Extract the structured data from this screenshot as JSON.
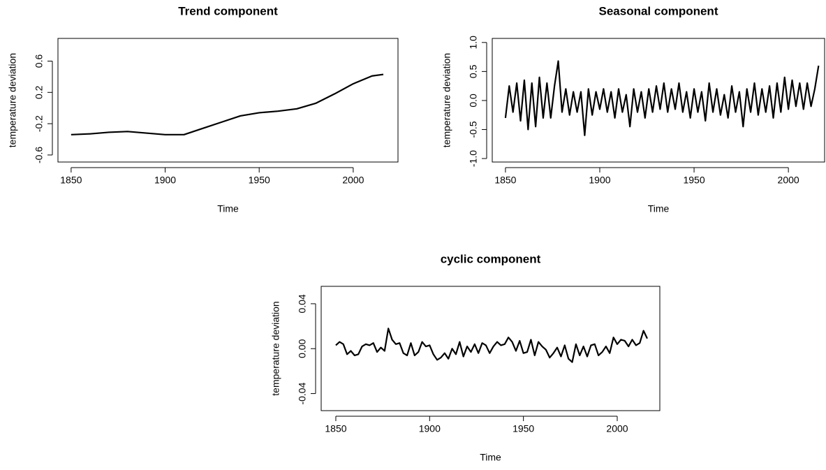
{
  "chart_data": [
    {
      "type": "line",
      "title": "Trend component",
      "xlabel": "Time",
      "ylabel": "temperature deviation",
      "color": "#000000",
      "x": [
        1850,
        1860,
        1870,
        1880,
        1890,
        1900,
        1910,
        1920,
        1930,
        1940,
        1950,
        1960,
        1970,
        1980,
        1990,
        2000,
        2010,
        2016
      ],
      "values": [
        -0.34,
        -0.33,
        -0.31,
        -0.3,
        -0.32,
        -0.34,
        -0.34,
        -0.26,
        -0.18,
        -0.1,
        -0.06,
        -0.04,
        -0.01,
        0.06,
        0.18,
        0.31,
        0.41,
        0.43
      ],
      "xlim": [
        1843.0,
        2023.8
      ],
      "xticks": [
        1850,
        1900,
        1950,
        2000
      ],
      "ylim": [
        -0.69,
        0.89
      ],
      "yticks": [
        -0.6,
        -0.2,
        0.2,
        0.6
      ]
    },
    {
      "type": "line",
      "title": "Seasonal component",
      "xlabel": "Time",
      "ylabel": "temperature deviation",
      "color": "#000000",
      "x": [
        1850,
        1852,
        1854,
        1856,
        1858,
        1860,
        1862,
        1864,
        1866,
        1868,
        1870,
        1872,
        1874,
        1876,
        1878,
        1880,
        1882,
        1884,
        1886,
        1888,
        1890,
        1892,
        1894,
        1896,
        1898,
        1900,
        1902,
        1904,
        1906,
        1908,
        1910,
        1912,
        1914,
        1916,
        1918,
        1920,
        1922,
        1924,
        1926,
        1928,
        1930,
        1932,
        1934,
        1936,
        1938,
        1940,
        1942,
        1944,
        1946,
        1948,
        1950,
        1952,
        1954,
        1956,
        1958,
        1960,
        1962,
        1964,
        1966,
        1968,
        1970,
        1972,
        1974,
        1976,
        1978,
        1980,
        1982,
        1984,
        1986,
        1988,
        1990,
        1992,
        1994,
        1996,
        1998,
        2000,
        2002,
        2004,
        2006,
        2008,
        2010,
        2012,
        2014,
        2016
      ],
      "values": [
        -0.3,
        0.25,
        -0.2,
        0.3,
        -0.35,
        0.35,
        -0.5,
        0.3,
        -0.45,
        0.4,
        -0.3,
        0.3,
        -0.3,
        0.25,
        0.68,
        -0.2,
        0.2,
        -0.25,
        0.15,
        -0.2,
        0.15,
        -0.6,
        0.2,
        -0.25,
        0.15,
        -0.15,
        0.2,
        -0.2,
        0.15,
        -0.3,
        0.2,
        -0.2,
        0.1,
        -0.45,
        0.2,
        -0.2,
        0.15,
        -0.3,
        0.2,
        -0.2,
        0.25,
        -0.15,
        0.3,
        -0.2,
        0.2,
        -0.15,
        0.3,
        -0.2,
        0.15,
        -0.3,
        0.2,
        -0.2,
        0.15,
        -0.35,
        0.3,
        -0.2,
        0.2,
        -0.25,
        0.1,
        -0.3,
        0.25,
        -0.2,
        0.15,
        -0.45,
        0.2,
        -0.2,
        0.3,
        -0.25,
        0.2,
        -0.2,
        0.25,
        -0.3,
        0.3,
        -0.2,
        0.4,
        -0.15,
        0.35,
        -0.1,
        0.3,
        -0.15,
        0.3,
        -0.1,
        0.2,
        0.6
      ],
      "xlim": [
        1843.0,
        2019.2
      ],
      "xticks": [
        1850,
        1900,
        1950,
        2000
      ],
      "ylim": [
        -1.06,
        1.07
      ],
      "yticks": [
        {
          "value": -1,
          "label": "-1.0"
        },
        -0.5,
        {
          "value": 0,
          "label": "0.0"
        },
        0.5,
        {
          "value": 1,
          "label": "1.0"
        }
      ]
    },
    {
      "type": "line",
      "title": "cyclic component",
      "xlabel": "Time",
      "ylabel": "temperature deviation",
      "color": "#000000",
      "x": [
        1850,
        1852,
        1854,
        1856,
        1858,
        1860,
        1862,
        1864,
        1866,
        1868,
        1870,
        1872,
        1874,
        1876,
        1878,
        1880,
        1882,
        1884,
        1886,
        1888,
        1890,
        1892,
        1894,
        1896,
        1898,
        1900,
        1902,
        1904,
        1906,
        1908,
        1910,
        1912,
        1914,
        1916,
        1918,
        1920,
        1922,
        1924,
        1926,
        1928,
        1930,
        1932,
        1934,
        1936,
        1938,
        1940,
        1942,
        1944,
        1946,
        1948,
        1950,
        1952,
        1954,
        1956,
        1958,
        1960,
        1962,
        1964,
        1966,
        1968,
        1970,
        1972,
        1974,
        1976,
        1978,
        1980,
        1982,
        1984,
        1986,
        1988,
        1990,
        1992,
        1994,
        1996,
        1998,
        2000,
        2002,
        2004,
        2006,
        2008,
        2010,
        2012,
        2014,
        2016
      ],
      "values": [
        0.003,
        0.006,
        0.004,
        -0.005,
        -0.002,
        -0.006,
        -0.005,
        0.002,
        0.004,
        0.003,
        0.005,
        -0.003,
        0.001,
        -0.002,
        0.018,
        0.008,
        0.004,
        0.005,
        -0.004,
        -0.006,
        0.005,
        -0.006,
        -0.003,
        0.006,
        0.002,
        0.003,
        -0.005,
        -0.01,
        -0.008,
        -0.004,
        -0.009,
        0.0,
        -0.005,
        0.006,
        -0.007,
        0.002,
        -0.003,
        0.004,
        -0.004,
        0.005,
        0.003,
        -0.004,
        0.002,
        0.006,
        0.003,
        0.004,
        0.01,
        0.006,
        -0.002,
        0.007,
        -0.004,
        -0.003,
        0.008,
        -0.006,
        0.006,
        0.002,
        -0.001,
        -0.008,
        -0.004,
        0.001,
        -0.007,
        0.003,
        -0.009,
        -0.012,
        0.004,
        -0.006,
        0.002,
        -0.007,
        0.003,
        0.004,
        -0.006,
        -0.003,
        0.002,
        -0.004,
        0.01,
        0.004,
        0.008,
        0.007,
        0.002,
        0.008,
        0.003,
        0.005,
        0.016,
        0.009
      ],
      "xlim": [
        1842.2,
        2022.7
      ],
      "xticks": [
        1850,
        1900,
        1950,
        2000
      ],
      "ylim": [
        -0.0552,
        0.0555
      ],
      "yticks": [
        -0.04,
        {
          "value": 0,
          "label": "0.00"
        },
        0.04
      ]
    }
  ]
}
